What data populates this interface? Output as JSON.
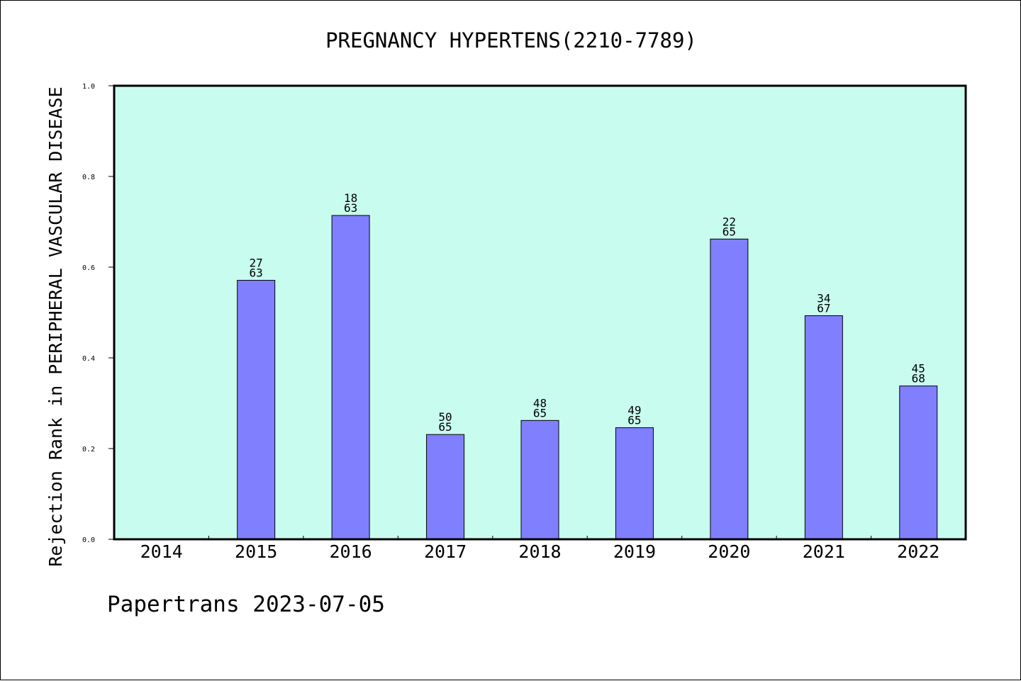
{
  "footer": "Papertrans 2023-07-05",
  "colors": {
    "plot_background": "#c8fcee",
    "bar_fill": "#8080ff",
    "bar_stroke": "#000000",
    "axis": "#000000"
  },
  "chart_data": {
    "type": "bar",
    "title": "PREGNANCY HYPERTENS(2210-7789)",
    "xlabel": "",
    "ylabel": "Rejection Rank in PERIPHERAL VASCULAR DISEASE",
    "ylim": [
      0,
      1.0
    ],
    "yticks": [
      0.0,
      0.2,
      0.4,
      0.6,
      0.8,
      1.0
    ],
    "ytick_labels": [
      "0.0",
      "0.2",
      "0.4",
      "0.6",
      "0.8",
      "1.0"
    ],
    "grid": false,
    "categories": [
      "2014",
      "2015",
      "2016",
      "2017",
      "2018",
      "2019",
      "2020",
      "2021",
      "2022"
    ],
    "values": [
      null,
      0.571,
      0.714,
      0.231,
      0.262,
      0.246,
      0.662,
      0.493,
      0.338
    ],
    "bar_labels": [
      null,
      [
        "27",
        "63"
      ],
      [
        "18",
        "63"
      ],
      [
        "50",
        "65"
      ],
      [
        "48",
        "65"
      ],
      [
        "49",
        "65"
      ],
      [
        "22",
        "65"
      ],
      [
        "34",
        "67"
      ],
      [
        "45",
        "68"
      ]
    ]
  }
}
